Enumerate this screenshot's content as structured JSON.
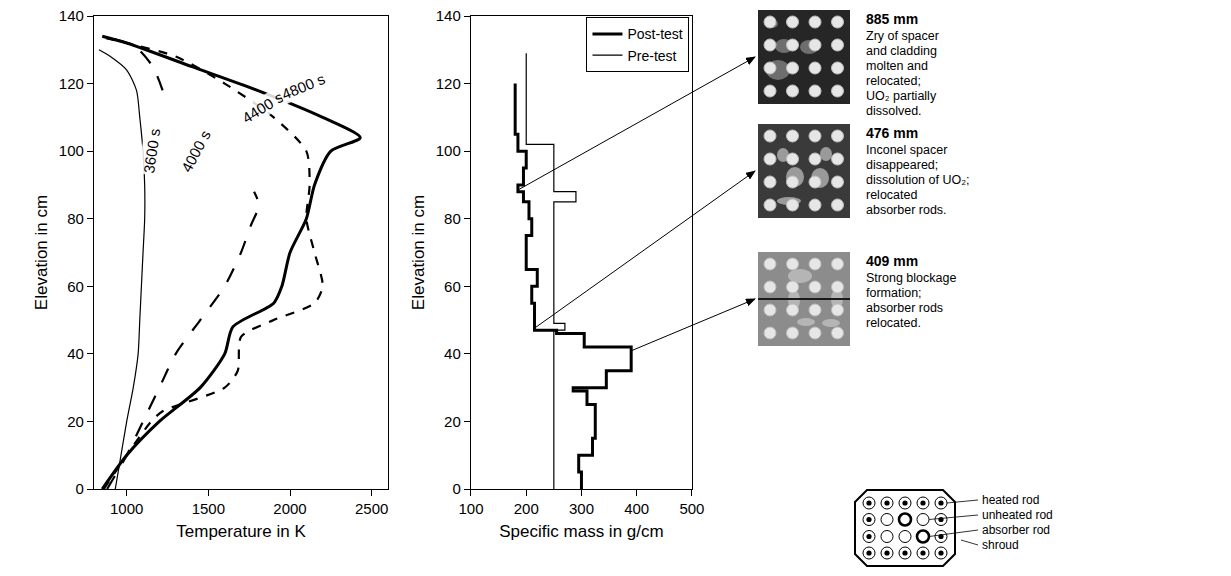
{
  "chart_data": [
    {
      "type": "line",
      "x_label": "Temperature in K",
      "y_label": "Elevation in cm",
      "xlim": [
        800,
        2600
      ],
      "xticks": [
        1000,
        1500,
        2000,
        2500
      ],
      "ylim": [
        0,
        140
      ],
      "yticks": [
        0,
        20,
        40,
        60,
        80,
        100,
        120,
        140
      ],
      "grid": false,
      "series": [
        {
          "name": "3600 s",
          "color": "#000000",
          "line_style": "solid",
          "label_at": [
            1150,
            100
          ],
          "x": [
            930,
            965,
            1000,
            1040,
            1070,
            1080,
            1090,
            1100,
            1110,
            1110,
            1100,
            1080,
            1060,
            1000,
            900,
            830
          ],
          "y": [
            0,
            10,
            20,
            30,
            40,
            50,
            60,
            70,
            80,
            90,
            100,
            110,
            118,
            124,
            128,
            130
          ]
        },
        {
          "name": "4000 s",
          "color": "#000000",
          "line_style": "longdash",
          "label_at": [
            1420,
            100
          ],
          "x": [
            880,
            1000,
            1100,
            1200,
            1300,
            1450,
            1600,
            1700,
            1760,
            1810,
            1780,
            null,
            1220,
            1160,
            1050,
            850
          ],
          "y": [
            0,
            10,
            20,
            30,
            40,
            50,
            60,
            70,
            78,
            84,
            88,
            null,
            118,
            125,
            131,
            134
          ]
        },
        {
          "name": "4400 s",
          "color": "#000000",
          "line_style": "dash",
          "label_at": [
            1830,
            113
          ],
          "x": [
            860,
            1000,
            1150,
            1220,
            1600,
            1680,
            1700,
            1900,
            2150,
            2200,
            2150,
            2100,
            2120,
            2100,
            1900,
            1600,
            1300,
            1000,
            820
          ],
          "y": [
            0,
            10,
            20,
            23,
            30,
            35,
            45,
            50,
            55,
            60,
            70,
            80,
            90,
            100,
            110,
            120,
            128,
            132,
            134
          ]
        },
        {
          "name": "4800 s",
          "color": "#000000",
          "line_style": "solid",
          "label_at": [
            2080,
            119
          ],
          "x": [
            850,
            1000,
            1200,
            1450,
            1600,
            1650,
            1900,
            1950,
            2000,
            2100,
            2150,
            2250,
            2430,
            2200,
            1800,
            1400,
            1000,
            850
          ],
          "y": [
            0,
            10,
            20,
            30,
            40,
            48,
            55,
            60,
            70,
            80,
            90,
            100,
            104,
            110,
            118,
            125,
            132,
            134
          ]
        }
      ]
    },
    {
      "type": "line",
      "x_label": "Specific mass in g/cm",
      "y_label": "Elevation in cm",
      "xlim": [
        100,
        500
      ],
      "xticks": [
        100,
        200,
        300,
        400,
        500
      ],
      "ylim": [
        0,
        140
      ],
      "yticks": [
        0,
        20,
        40,
        60,
        80,
        100,
        120,
        140
      ],
      "grid": false,
      "legend": "top right",
      "series": [
        {
          "name": "Post-test",
          "color": "#000000",
          "line_style": "solid",
          "x": [
            300,
            300,
            295,
            295,
            320,
            320,
            325,
            325,
            310,
            310,
            285,
            285,
            345,
            345,
            390,
            390,
            305,
            305,
            255,
            255,
            215,
            215,
            210,
            210,
            220,
            220,
            200,
            200,
            210,
            210,
            205,
            205,
            195,
            195,
            185,
            185,
            195,
            195,
            200,
            200,
            185,
            185,
            180,
            180
          ],
          "y": [
            0,
            5,
            5,
            10,
            10,
            15,
            15,
            25,
            25,
            29,
            29,
            30,
            30,
            35,
            35,
            42,
            42,
            46,
            46,
            47,
            47,
            55,
            55,
            60,
            60,
            65,
            65,
            75,
            75,
            80,
            80,
            85,
            85,
            88,
            88,
            90,
            90,
            95,
            95,
            100,
            100,
            105,
            105,
            120
          ]
        },
        {
          "name": "Pre-test",
          "color": "#000000",
          "line_style": "solid",
          "x": [
            250,
            250,
            270,
            270,
            250,
            250,
            290,
            290,
            250,
            250,
            200,
            200
          ],
          "y": [
            0,
            47,
            47,
            49,
            49,
            85,
            85,
            88,
            88,
            102,
            102,
            129
          ]
        }
      ]
    }
  ],
  "photos": [
    {
      "label": "885 mm",
      "lines": [
        "Zry of spacer",
        "and cladding",
        "molten and",
        "relocated;",
        "UO₂ partially",
        "dissolved."
      ],
      "point": [
        185,
        88.5
      ]
    },
    {
      "label": "476 mm",
      "lines": [
        "Inconel spacer",
        "disappeared;",
        "dissolution of UO₂;",
        "relocated",
        "absorber rods."
      ],
      "point": [
        215,
        47.6
      ]
    },
    {
      "label": "409 mm",
      "lines": [
        "Strong blockage",
        "formation;",
        "absorber rods",
        "relocated."
      ],
      "point": [
        390,
        40.9
      ]
    }
  ],
  "diagram": {
    "labels": [
      "heated rod",
      "unheated rod",
      "absorber rod",
      "shroud"
    ]
  }
}
